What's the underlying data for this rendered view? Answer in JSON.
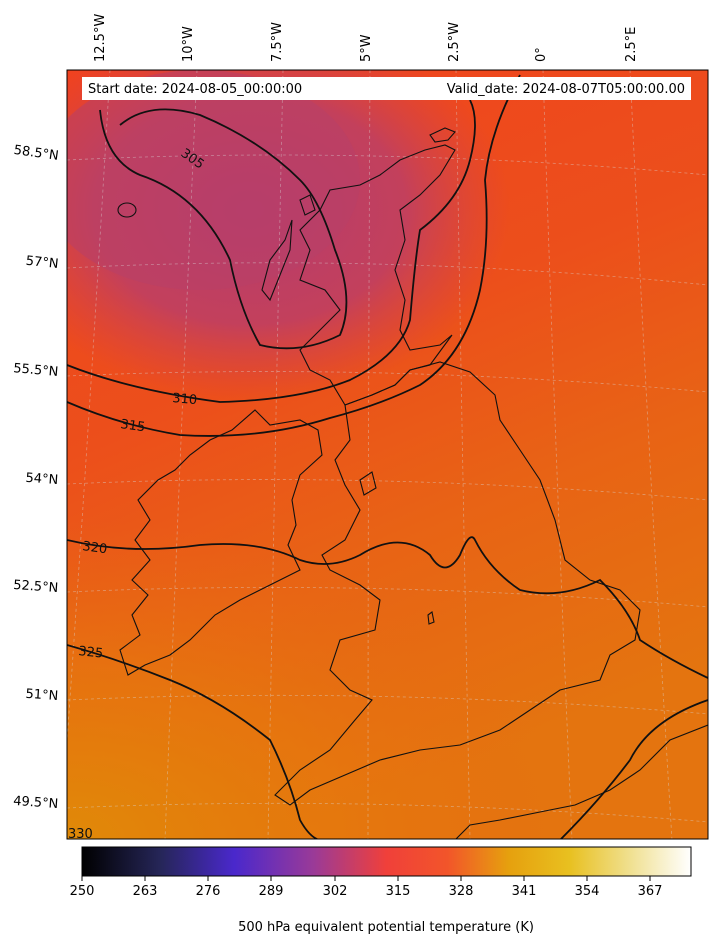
{
  "header": {
    "start_date": "Start date: 2024-08-05_00:00:00",
    "valid_date": "Valid_date: 2024-08-07T05:00:00.00"
  },
  "axes": {
    "lon_labels": [
      "12.5°W",
      "10°W",
      "7.5°W",
      "5°W",
      "2.5°W",
      "0°",
      "2.5°E"
    ],
    "lat_labels": [
      "58.5°N",
      "57°N",
      "55.5°N",
      "54°N",
      "52.5°N",
      "51°N",
      "49.5°N"
    ]
  },
  "contours": {
    "labels": [
      "305",
      "310",
      "315",
      "320",
      "325",
      "330"
    ]
  },
  "colorbar": {
    "ticks": [
      "250",
      "263",
      "276",
      "289",
      "302",
      "315",
      "328",
      "341",
      "354",
      "367"
    ],
    "title": "500 hPa equivalent potential temperature (K)",
    "colormap": "CMRmap-like (black - indigo - purple - red - orange - yellow - white)"
  },
  "colors": {
    "cold_region": "#c2415e",
    "warm_red": "#f0411f",
    "orange": "#e8650f",
    "warm_orange": "#df8a08"
  }
}
